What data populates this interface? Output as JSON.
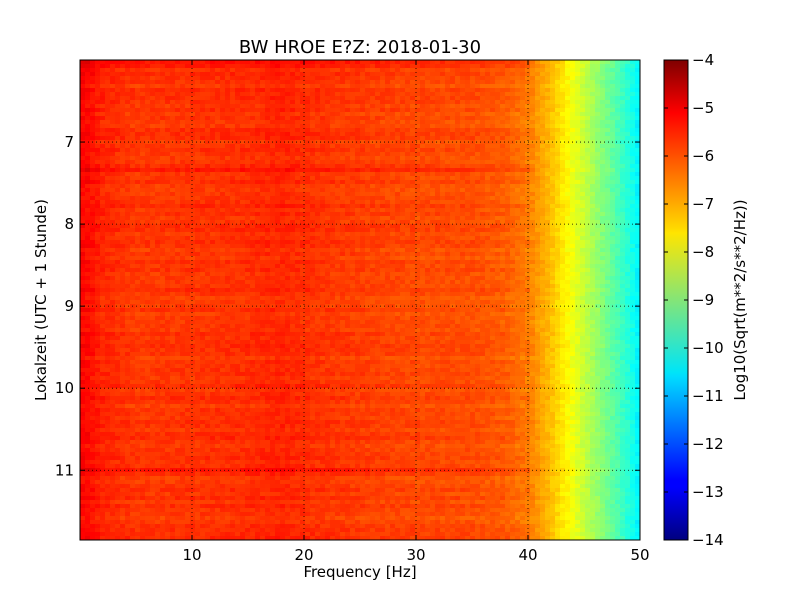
{
  "chart_data": {
    "type": "heatmap",
    "title": "BW HROE E?Z: 2018-01-30",
    "xlabel": "Frequency [Hz]",
    "ylabel": "Lokalzeit (UTC + 1 Stunde)",
    "xlim": [
      0,
      50
    ],
    "ylim": [
      11.85,
      6.0
    ],
    "x_ticks": [
      10,
      20,
      30,
      40,
      50
    ],
    "y_ticks": [
      7,
      8,
      9,
      10,
      11
    ],
    "grid": true,
    "colormap": "jet",
    "colorbar": {
      "label": "Log10(Sqrt(m**2/s**2/Hz))",
      "range": [
        -14,
        -4
      ],
      "ticks": [
        -4,
        -5,
        -6,
        -7,
        -8,
        -9,
        -10,
        -11,
        -12,
        -13,
        -14
      ]
    },
    "frequency_profile": {
      "frequency_hz": [
        0.5,
        2,
        5,
        10,
        15,
        18,
        20,
        25,
        30,
        35,
        38,
        40,
        41,
        42,
        43,
        44,
        45,
        46,
        47,
        48,
        49,
        50
      ],
      "level_log10": [
        -5.3,
        -5.6,
        -5.8,
        -5.75,
        -5.7,
        -5.6,
        -5.7,
        -5.85,
        -5.95,
        -6.0,
        -6.15,
        -6.45,
        -6.8,
        -7.1,
        -7.5,
        -7.9,
        -8.3,
        -8.7,
        -9.1,
        -9.5,
        -9.9,
        -10.4
      ]
    },
    "strong_bands": [
      {
        "time": 11.0,
        "level_offset": 0.4
      },
      {
        "time": 7.35,
        "level_offset": 0.2
      },
      {
        "time": 6.05,
        "level_offset": 0.3
      }
    ]
  },
  "colors": {
    "axis": "#000000",
    "grid": "#000000",
    "background": "#ffffff"
  }
}
